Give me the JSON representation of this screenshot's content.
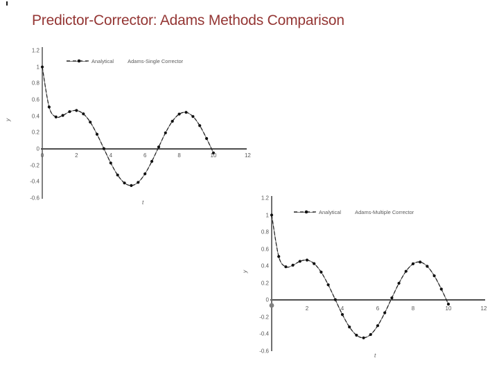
{
  "slide": {
    "title": "Predictor-Corrector: Adams Methods Comparison",
    "title_color": "#943634",
    "background": "#ffffff"
  },
  "colors": {
    "tick_text": "#595959",
    "x_axis_line": "#333333",
    "y_axis_line_chart1": "#4a4a4a",
    "y_axis_line_chart2": "#6f6f6f",
    "analytical_line": "#6b6b6b",
    "adams_line": "#1a1a1a",
    "marker_fill": "#111111",
    "origin_dot": "#808080"
  },
  "chart_data": [
    {
      "type": "line",
      "title": "",
      "xlabel": "t",
      "ylabel": "y",
      "xlim": [
        0,
        12
      ],
      "ylim": [
        -0.6,
        1.2
      ],
      "grid": false,
      "legend_position": "top-center",
      "x_tick_labels": [
        "0",
        "2",
        "4",
        "6",
        "8",
        "10",
        "12"
      ],
      "y_tick_labels": [
        "1.2",
        "1",
        "0.8",
        "0.6",
        "0.4",
        "0.2",
        "0",
        "-0.2",
        "-0.4",
        "-0.6"
      ],
      "x": [
        0,
        0.4,
        0.8,
        1.2,
        1.6,
        2,
        2.4,
        2.8,
        3.2,
        3.6,
        4,
        4.4,
        4.8,
        5.2,
        5.6,
        6,
        6.4,
        6.8,
        7.2,
        7.6,
        8,
        8.4,
        8.8,
        9.2,
        9.6,
        10
      ],
      "series": [
        {
          "name": "Analytical",
          "style": "solid-line",
          "y": [
            1.0,
            0.511,
            0.39,
            0.409,
            0.455,
            0.469,
            0.428,
            0.327,
            0.178,
            0.003,
            -0.172,
            -0.319,
            -0.416,
            -0.447,
            -0.408,
            -0.304,
            -0.152,
            0.024,
            0.196,
            0.337,
            0.425,
            0.446,
            0.396,
            0.284,
            0.127,
            -0.05
          ]
        },
        {
          "name": "Adams-Single Corrector",
          "style": "dashed-line-with-circle-markers",
          "y": [
            1.0,
            0.511,
            0.39,
            0.409,
            0.455,
            0.469,
            0.428,
            0.327,
            0.178,
            0.003,
            -0.172,
            -0.319,
            -0.416,
            -0.447,
            -0.408,
            -0.304,
            -0.152,
            0.024,
            0.196,
            0.337,
            0.425,
            0.446,
            0.396,
            0.284,
            0.127,
            -0.05
          ]
        }
      ],
      "origin_marker_dot": false
    },
    {
      "type": "line",
      "title": "",
      "xlabel": "t",
      "ylabel": "y",
      "xlim": [
        0,
        12
      ],
      "ylim": [
        -0.6,
        1.2
      ],
      "grid": false,
      "legend_position": "top-center",
      "x_tick_labels": [
        "0",
        "2",
        "4",
        "6",
        "8",
        "10",
        "12"
      ],
      "y_tick_labels": [
        "1.2",
        "1",
        "0.8",
        "0.6",
        "0.4",
        "0.2",
        "0",
        "-0.2",
        "-0.4",
        "-0.6"
      ],
      "x": [
        0,
        0.4,
        0.8,
        1.2,
        1.6,
        2,
        2.4,
        2.8,
        3.2,
        3.6,
        4,
        4.4,
        4.8,
        5.2,
        5.6,
        6,
        6.4,
        6.8,
        7.2,
        7.6,
        8,
        8.4,
        8.8,
        9.2,
        9.6,
        10
      ],
      "series": [
        {
          "name": "Analytical",
          "style": "solid-line",
          "y": [
            1.0,
            0.511,
            0.39,
            0.409,
            0.455,
            0.469,
            0.428,
            0.327,
            0.178,
            0.003,
            -0.172,
            -0.319,
            -0.416,
            -0.447,
            -0.408,
            -0.304,
            -0.152,
            0.024,
            0.196,
            0.337,
            0.425,
            0.446,
            0.396,
            0.284,
            0.127,
            -0.05
          ]
        },
        {
          "name": "Adams-Multiple Corrector",
          "style": "dashed-line-with-circle-markers",
          "y": [
            1.0,
            0.511,
            0.39,
            0.409,
            0.455,
            0.469,
            0.428,
            0.327,
            0.178,
            0.003,
            -0.172,
            -0.319,
            -0.416,
            -0.447,
            -0.408,
            -0.304,
            -0.152,
            0.024,
            0.196,
            0.337,
            0.425,
            0.446,
            0.396,
            0.284,
            0.127,
            -0.05
          ]
        }
      ],
      "origin_marker_dot": true
    }
  ]
}
